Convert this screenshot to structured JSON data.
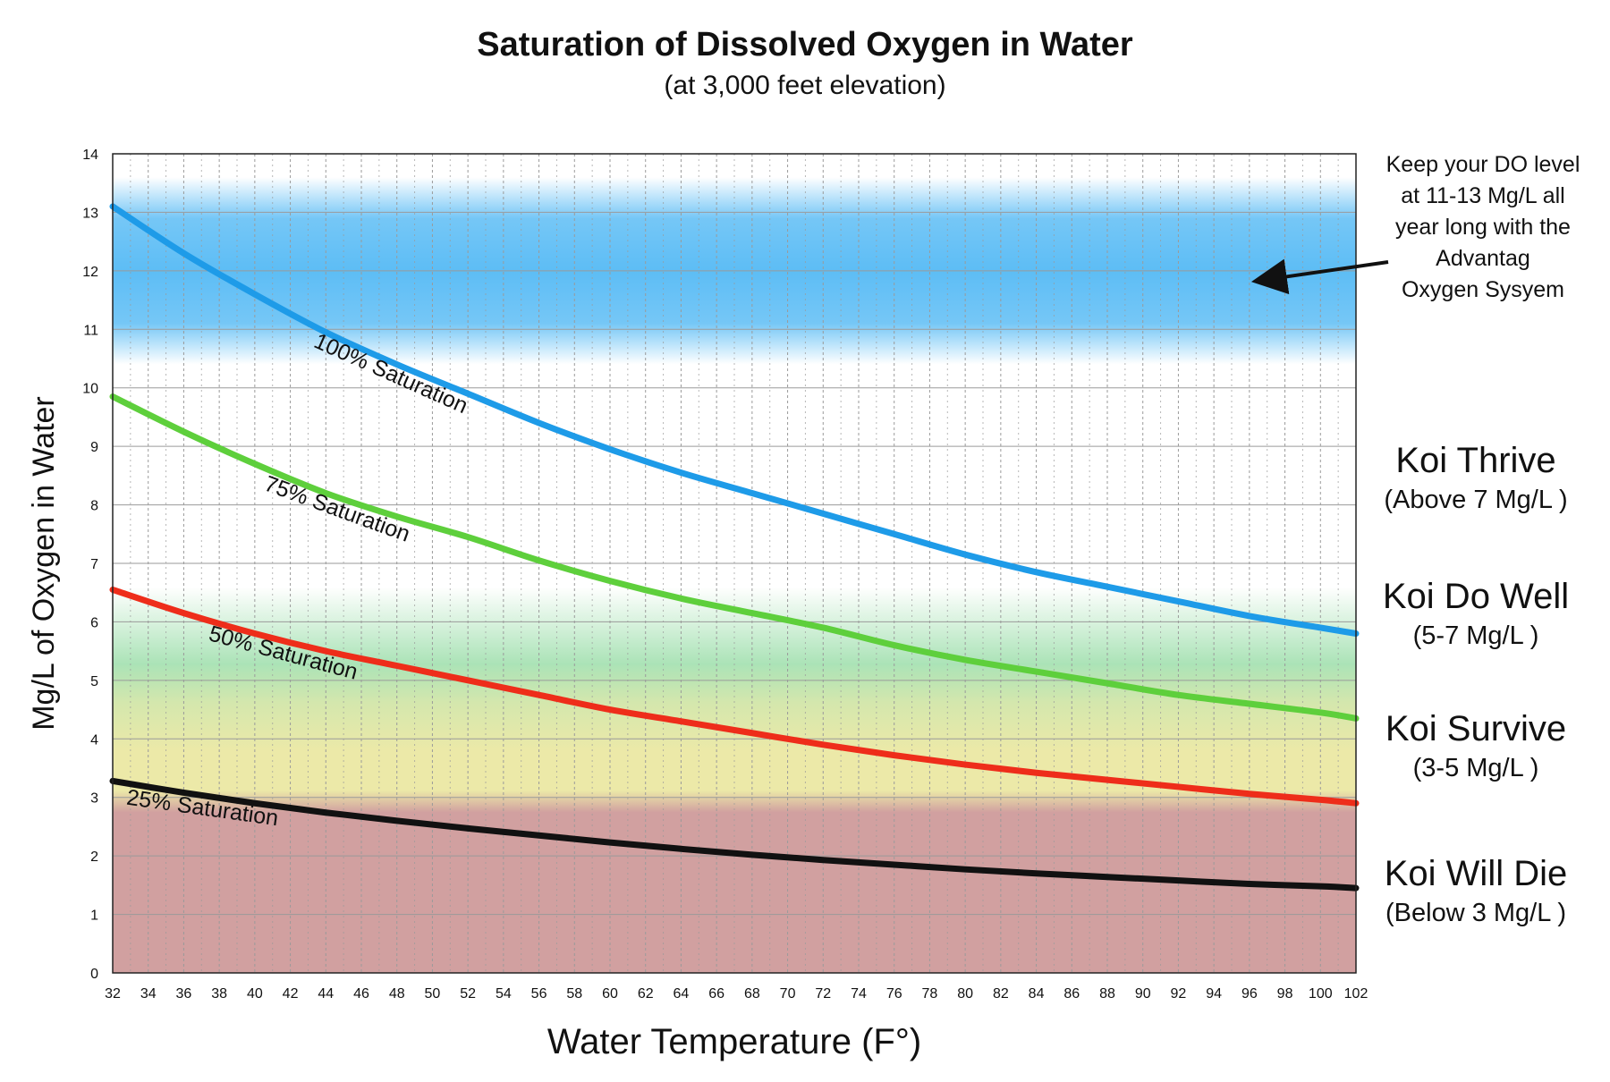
{
  "chart_data": {
    "type": "line",
    "title": "Saturation of Dissolved Oxygen in Water",
    "subtitle": "(at 3,000 feet elevation)",
    "xlabel": "Water Temperature (F°)",
    "ylabel": "Mg/L of Oxygen in Water",
    "xlim": [
      32,
      102
    ],
    "ylim": [
      0,
      14
    ],
    "x_ticks": [
      32,
      34,
      36,
      38,
      40,
      42,
      44,
      46,
      48,
      50,
      52,
      54,
      56,
      58,
      60,
      62,
      64,
      66,
      68,
      70,
      72,
      74,
      76,
      78,
      80,
      82,
      84,
      86,
      88,
      90,
      92,
      94,
      96,
      98,
      100,
      102
    ],
    "y_ticks": [
      0,
      1,
      2,
      3,
      4,
      5,
      6,
      7,
      8,
      9,
      10,
      11,
      12,
      13,
      14
    ],
    "grid": true,
    "x": [
      32,
      36,
      40,
      44,
      48,
      52,
      56,
      60,
      64,
      68,
      72,
      76,
      80,
      84,
      88,
      92,
      96,
      100,
      102
    ],
    "series": [
      {
        "name": "100% Saturation",
        "color": "#1e9be8",
        "values": [
          13.1,
          12.3,
          11.6,
          10.95,
          10.4,
          9.9,
          9.4,
          8.95,
          8.55,
          8.2,
          7.85,
          7.5,
          7.15,
          6.85,
          6.6,
          6.35,
          6.1,
          5.9,
          5.8
        ]
      },
      {
        "name": "75% Saturation",
        "color": "#5ecf3c",
        "values": [
          9.85,
          9.25,
          8.7,
          8.2,
          7.8,
          7.45,
          7.05,
          6.7,
          6.4,
          6.15,
          5.9,
          5.6,
          5.35,
          5.15,
          4.95,
          4.75,
          4.6,
          4.45,
          4.35
        ]
      },
      {
        "name": "50% Saturation",
        "color": "#ee2d1a",
        "values": [
          6.55,
          6.15,
          5.8,
          5.5,
          5.25,
          5.0,
          4.75,
          4.5,
          4.3,
          4.1,
          3.9,
          3.72,
          3.56,
          3.42,
          3.3,
          3.18,
          3.06,
          2.96,
          2.9
        ]
      },
      {
        "name": "25% Saturation",
        "color": "#111111",
        "values": [
          3.28,
          3.08,
          2.9,
          2.74,
          2.6,
          2.47,
          2.35,
          2.23,
          2.12,
          2.02,
          1.93,
          1.85,
          1.77,
          1.7,
          1.64,
          1.58,
          1.52,
          1.48,
          1.45
        ]
      }
    ],
    "zones": [
      {
        "title": "Koi Thrive",
        "range": "(Above 7 Mg/L )",
        "from": 7,
        "to": 14
      },
      {
        "title": "Koi Do Well",
        "range": "(5-7 Mg/L )",
        "from": 5,
        "to": 7
      },
      {
        "title": "Koi Survive",
        "range": "(3-5 Mg/L )",
        "from": 3,
        "to": 5
      },
      {
        "title": "Koi Will Die",
        "range": "(Below 3 Mg/L )",
        "from": 0,
        "to": 3
      }
    ],
    "target_band": {
      "from": 11,
      "to": 13
    },
    "annotation": {
      "lines": [
        "Keep your DO level",
        "at 11-13 Mg/L all",
        "year long with the",
        "Advantag",
        "Oxygen Sysyem"
      ],
      "arrow_target": {
        "x": 96,
        "y": 11.8
      }
    },
    "colors": {
      "target_band": "#5dbdf5",
      "zone_thrive_low": "#ffffff",
      "zone_do_well": "#abe3b7",
      "zone_survive": "#ece9a8",
      "zone_die": "#d1a0a0",
      "grid_major": "#9a9a9a",
      "grid_minor": "#9a9a9a",
      "axis": "#222222"
    }
  }
}
